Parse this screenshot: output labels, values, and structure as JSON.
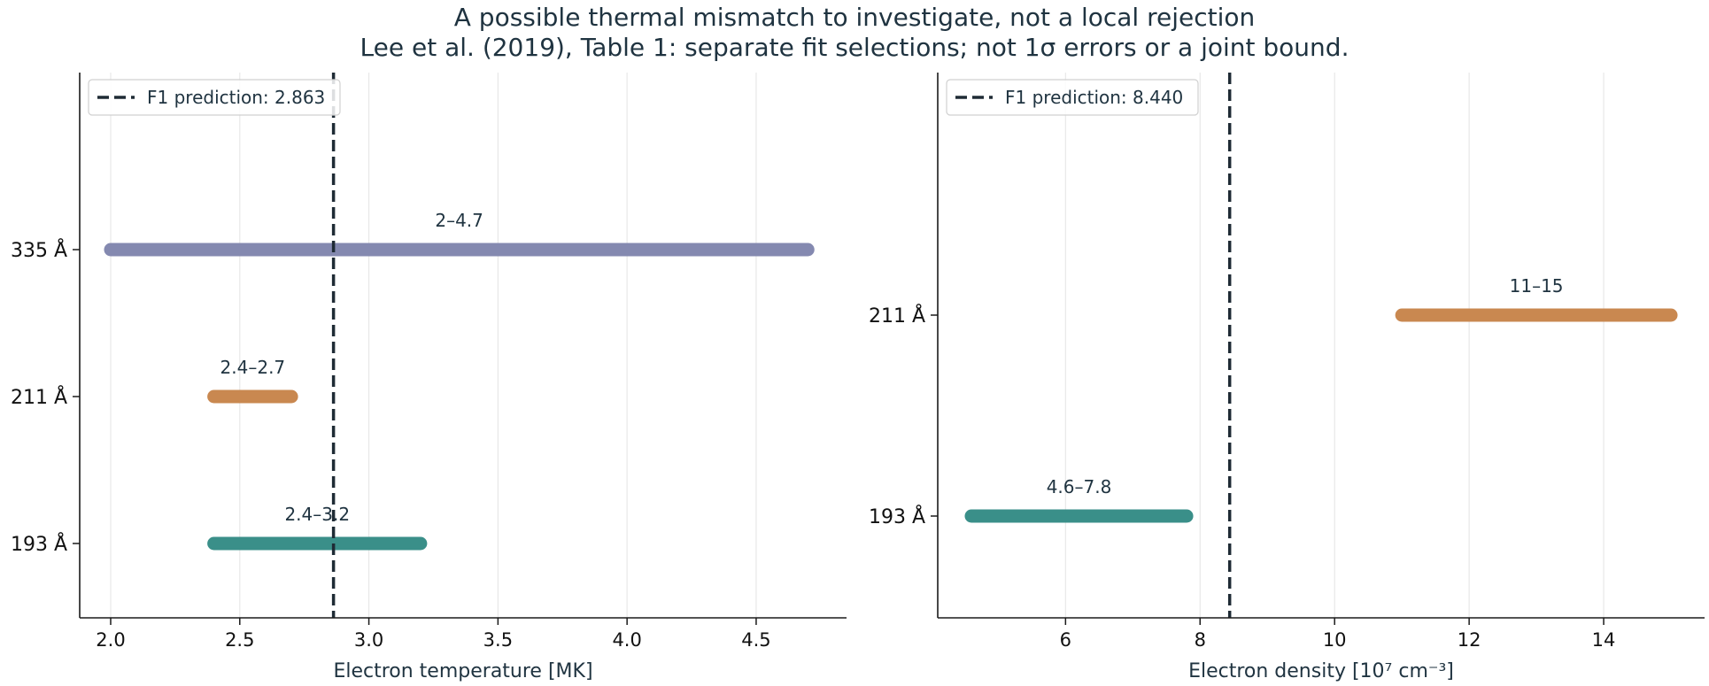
{
  "figure": {
    "title": "A possible thermal mismatch to investigate, not a local rejection",
    "subtitle": "Lee et al. (2019), Table 1: separate fit selections; not 1σ errors or a joint bound."
  },
  "colors": {
    "text": "#1f3340",
    "axis": "#1a1a1a",
    "grid": "#e8e8e8",
    "prediction_line": "#1f2b35",
    "335 Å": "#8489b0",
    "211 Å": "#c98850",
    "193 Å": "#3a8f89",
    "legend_border": "#d0d0d0"
  },
  "chart_data": [
    {
      "type": "range",
      "xlabel": "Electron temperature [MK]",
      "ylabel": "",
      "xlim": [
        1.88,
        4.85
      ],
      "xticks": [
        2.0,
        2.5,
        3.0,
        3.5,
        4.0,
        4.5
      ],
      "xtick_labels": [
        "2.0",
        "2.5",
        "3.0",
        "3.5",
        "4.0",
        "4.5"
      ],
      "grid": "vertical",
      "legend": {
        "placement": "top-left",
        "label": "F1 prediction: 2.863"
      },
      "prediction": 2.863,
      "rows": [
        {
          "name": "335 Å",
          "low": 2.0,
          "high": 4.7,
          "label": "2–4.7"
        },
        {
          "name": "211 Å",
          "low": 2.4,
          "high": 2.7,
          "label": "2.4–2.7"
        },
        {
          "name": "193 Å",
          "low": 2.4,
          "high": 3.2,
          "label": "2.4–3.2"
        }
      ]
    },
    {
      "type": "range",
      "xlabel": "Electron density [10⁷ cm⁻³]",
      "ylabel": "",
      "xlim": [
        4.1,
        15.5
      ],
      "xticks": [
        6,
        8,
        10,
        12,
        14
      ],
      "xtick_labels": [
        "6",
        "8",
        "10",
        "12",
        "14"
      ],
      "grid": "vertical",
      "legend": {
        "placement": "top-left",
        "label": "F1 prediction: 8.440"
      },
      "prediction": 8.44,
      "rows": [
        {
          "name": "211 Å",
          "low": 11,
          "high": 15,
          "label": "11–15"
        },
        {
          "name": "193 Å",
          "low": 4.6,
          "high": 7.8,
          "label": "4.6–7.8"
        }
      ]
    }
  ]
}
